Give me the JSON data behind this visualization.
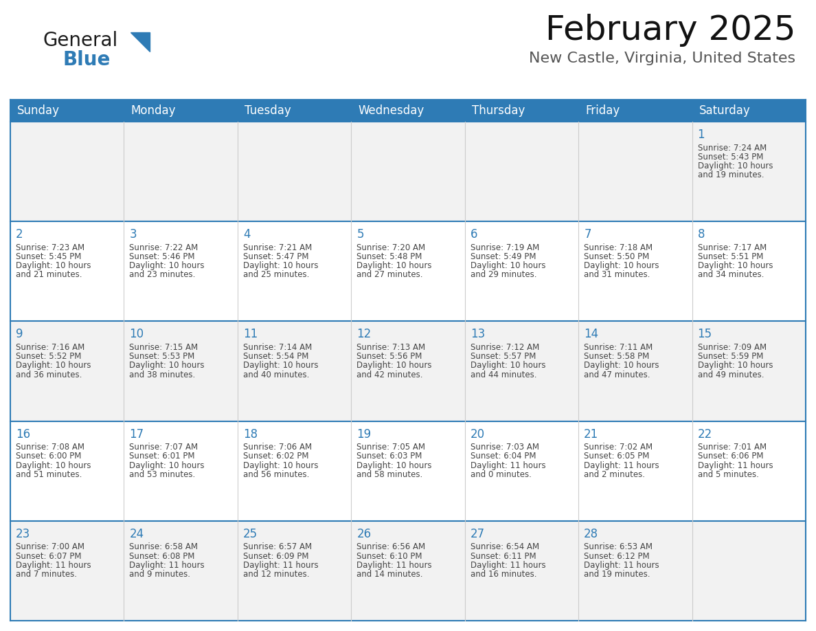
{
  "title": "February 2025",
  "subtitle": "New Castle, Virginia, United States",
  "header_color": "#2E7BB5",
  "header_text_color": "#FFFFFF",
  "cell_border_color": "#2E7BB5",
  "day_number_color": "#2E7BB5",
  "cell_text_color": "#444444",
  "background_color": "#FFFFFF",
  "row_alt_color": "#F2F2F2",
  "col_separator_color": "#CCCCCC",
  "logo_text_general": "General",
  "logo_text_blue": "Blue",
  "logo_general_color": "#1A1A1A",
  "logo_blue_color": "#2E7BB5",
  "weekdays": [
    "Sunday",
    "Monday",
    "Tuesday",
    "Wednesday",
    "Thursday",
    "Friday",
    "Saturday"
  ],
  "title_fontsize": 36,
  "subtitle_fontsize": 16,
  "header_fontsize": 12,
  "day_num_fontsize": 12,
  "cell_text_fontsize": 8.5,
  "calendar": [
    [
      null,
      null,
      null,
      null,
      null,
      null,
      {
        "day": 1,
        "sunrise": "7:24 AM",
        "sunset": "5:43 PM",
        "daylight_line1": "Daylight: 10 hours",
        "daylight_line2": "and 19 minutes."
      }
    ],
    [
      {
        "day": 2,
        "sunrise": "7:23 AM",
        "sunset": "5:45 PM",
        "daylight_line1": "Daylight: 10 hours",
        "daylight_line2": "and 21 minutes."
      },
      {
        "day": 3,
        "sunrise": "7:22 AM",
        "sunset": "5:46 PM",
        "daylight_line1": "Daylight: 10 hours",
        "daylight_line2": "and 23 minutes."
      },
      {
        "day": 4,
        "sunrise": "7:21 AM",
        "sunset": "5:47 PM",
        "daylight_line1": "Daylight: 10 hours",
        "daylight_line2": "and 25 minutes."
      },
      {
        "day": 5,
        "sunrise": "7:20 AM",
        "sunset": "5:48 PM",
        "daylight_line1": "Daylight: 10 hours",
        "daylight_line2": "and 27 minutes."
      },
      {
        "day": 6,
        "sunrise": "7:19 AM",
        "sunset": "5:49 PM",
        "daylight_line1": "Daylight: 10 hours",
        "daylight_line2": "and 29 minutes."
      },
      {
        "day": 7,
        "sunrise": "7:18 AM",
        "sunset": "5:50 PM",
        "daylight_line1": "Daylight: 10 hours",
        "daylight_line2": "and 31 minutes."
      },
      {
        "day": 8,
        "sunrise": "7:17 AM",
        "sunset": "5:51 PM",
        "daylight_line1": "Daylight: 10 hours",
        "daylight_line2": "and 34 minutes."
      }
    ],
    [
      {
        "day": 9,
        "sunrise": "7:16 AM",
        "sunset": "5:52 PM",
        "daylight_line1": "Daylight: 10 hours",
        "daylight_line2": "and 36 minutes."
      },
      {
        "day": 10,
        "sunrise": "7:15 AM",
        "sunset": "5:53 PM",
        "daylight_line1": "Daylight: 10 hours",
        "daylight_line2": "and 38 minutes."
      },
      {
        "day": 11,
        "sunrise": "7:14 AM",
        "sunset": "5:54 PM",
        "daylight_line1": "Daylight: 10 hours",
        "daylight_line2": "and 40 minutes."
      },
      {
        "day": 12,
        "sunrise": "7:13 AM",
        "sunset": "5:56 PM",
        "daylight_line1": "Daylight: 10 hours",
        "daylight_line2": "and 42 minutes."
      },
      {
        "day": 13,
        "sunrise": "7:12 AM",
        "sunset": "5:57 PM",
        "daylight_line1": "Daylight: 10 hours",
        "daylight_line2": "and 44 minutes."
      },
      {
        "day": 14,
        "sunrise": "7:11 AM",
        "sunset": "5:58 PM",
        "daylight_line1": "Daylight: 10 hours",
        "daylight_line2": "and 47 minutes."
      },
      {
        "day": 15,
        "sunrise": "7:09 AM",
        "sunset": "5:59 PM",
        "daylight_line1": "Daylight: 10 hours",
        "daylight_line2": "and 49 minutes."
      }
    ],
    [
      {
        "day": 16,
        "sunrise": "7:08 AM",
        "sunset": "6:00 PM",
        "daylight_line1": "Daylight: 10 hours",
        "daylight_line2": "and 51 minutes."
      },
      {
        "day": 17,
        "sunrise": "7:07 AM",
        "sunset": "6:01 PM",
        "daylight_line1": "Daylight: 10 hours",
        "daylight_line2": "and 53 minutes."
      },
      {
        "day": 18,
        "sunrise": "7:06 AM",
        "sunset": "6:02 PM",
        "daylight_line1": "Daylight: 10 hours",
        "daylight_line2": "and 56 minutes."
      },
      {
        "day": 19,
        "sunrise": "7:05 AM",
        "sunset": "6:03 PM",
        "daylight_line1": "Daylight: 10 hours",
        "daylight_line2": "and 58 minutes."
      },
      {
        "day": 20,
        "sunrise": "7:03 AM",
        "sunset": "6:04 PM",
        "daylight_line1": "Daylight: 11 hours",
        "daylight_line2": "and 0 minutes."
      },
      {
        "day": 21,
        "sunrise": "7:02 AM",
        "sunset": "6:05 PM",
        "daylight_line1": "Daylight: 11 hours",
        "daylight_line2": "and 2 minutes."
      },
      {
        "day": 22,
        "sunrise": "7:01 AM",
        "sunset": "6:06 PM",
        "daylight_line1": "Daylight: 11 hours",
        "daylight_line2": "and 5 minutes."
      }
    ],
    [
      {
        "day": 23,
        "sunrise": "7:00 AM",
        "sunset": "6:07 PM",
        "daylight_line1": "Daylight: 11 hours",
        "daylight_line2": "and 7 minutes."
      },
      {
        "day": 24,
        "sunrise": "6:58 AM",
        "sunset": "6:08 PM",
        "daylight_line1": "Daylight: 11 hours",
        "daylight_line2": "and 9 minutes."
      },
      {
        "day": 25,
        "sunrise": "6:57 AM",
        "sunset": "6:09 PM",
        "daylight_line1": "Daylight: 11 hours",
        "daylight_line2": "and 12 minutes."
      },
      {
        "day": 26,
        "sunrise": "6:56 AM",
        "sunset": "6:10 PM",
        "daylight_line1": "Daylight: 11 hours",
        "daylight_line2": "and 14 minutes."
      },
      {
        "day": 27,
        "sunrise": "6:54 AM",
        "sunset": "6:11 PM",
        "daylight_line1": "Daylight: 11 hours",
        "daylight_line2": "and 16 minutes."
      },
      {
        "day": 28,
        "sunrise": "6:53 AM",
        "sunset": "6:12 PM",
        "daylight_line1": "Daylight: 11 hours",
        "daylight_line2": "and 19 minutes."
      },
      null
    ]
  ]
}
